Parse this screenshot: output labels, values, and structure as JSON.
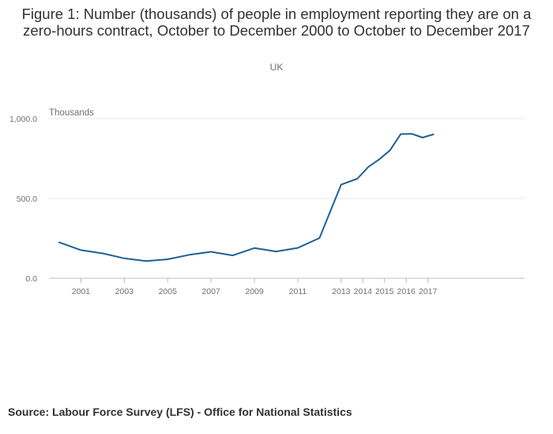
{
  "title": "Figure 1: Number (thousands) of people in employment reporting they are on a zero-hours contract, October to December 2000 to October to December 2017",
  "subtitle": "UK",
  "footer": {
    "source_label": "Source:",
    "source_text": "Labour Force Survey (LFS) - Office for National Statistics"
  },
  "chart_data": {
    "type": "line",
    "title": "Figure 1: Number (thousands) of people in employment reporting they are on a zero-hours contract, October to December 2000 to October to December 2017",
    "subtitle": "UK",
    "ylabel": "Thousands",
    "xlabel": "",
    "ylim": [
      0,
      1000
    ],
    "yticks": [
      0,
      500,
      1000
    ],
    "ytick_labels": [
      "0.0",
      "500.0",
      "1,000.0"
    ],
    "xlim": [
      2000,
      2017
    ],
    "xticks": [
      2001,
      2003,
      2005,
      2007,
      2009,
      2011,
      2013,
      2014,
      2015,
      2016,
      2017
    ],
    "xtick_labels": [
      "2001",
      "2003",
      "2005",
      "2007",
      "2009",
      "2011",
      "2013",
      "2014",
      "2015",
      "2016",
      "2017"
    ],
    "grid": true,
    "legend": "none",
    "color": "#206095",
    "series": [
      {
        "x": [
          2000,
          2001,
          2002,
          2003,
          2004,
          2005,
          2006,
          2007,
          2008,
          2009,
          2010,
          2011,
          2012,
          2013,
          2013.75,
          2014.25,
          2014.75,
          2015.25,
          2015.75,
          2016.25,
          2016.75,
          2017.25
        ],
        "values": [
          225,
          176,
          156,
          125,
          108,
          119,
          147,
          166,
          143,
          189,
          168,
          190,
          252,
          586,
          624,
          697,
          744,
          801,
          903,
          905,
          881,
          901
        ]
      }
    ]
  }
}
